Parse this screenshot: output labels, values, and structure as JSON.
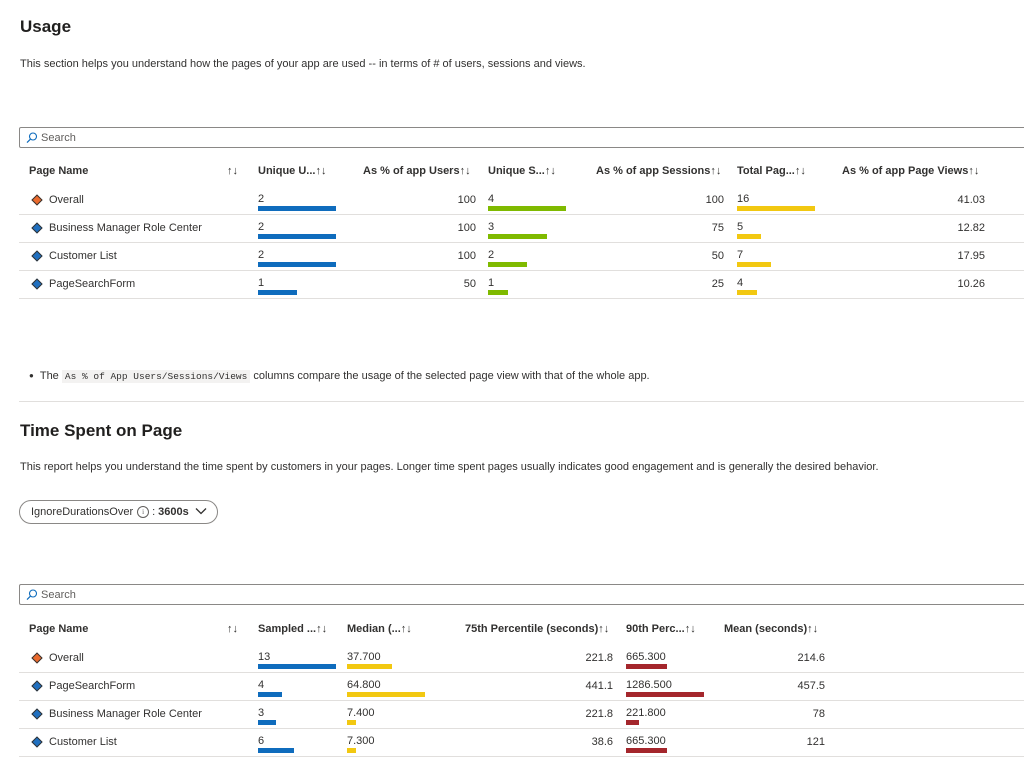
{
  "usage": {
    "title": "Usage",
    "description": "This section helps you understand how the pages of your app are used -- in terms of # of users, sessions and views.",
    "search_placeholder": "Search",
    "columns": [
      "Page Name",
      "Unique U...",
      "As % of app Users",
      "Unique S...",
      "As % of app Sessions",
      "Total Pag...",
      "As % of app Page Views"
    ],
    "rows": [
      {
        "name": "Overall",
        "icon": "orange-diamond-icon",
        "users": "2",
        "users_pct": "100",
        "sessions": "4",
        "sessions_pct": "100",
        "views": "16",
        "views_pct": "41.03",
        "users_bar": 1.0,
        "sessions_bar": 1.0,
        "views_bar": 1.0
      },
      {
        "name": "Business Manager Role Center",
        "icon": "blue-diamond-icon",
        "users": "2",
        "users_pct": "100",
        "sessions": "3",
        "sessions_pct": "75",
        "views": "5",
        "views_pct": "12.82",
        "users_bar": 1.0,
        "sessions_bar": 0.75,
        "views_bar": 0.3125
      },
      {
        "name": "Customer List",
        "icon": "blue-diamond-icon",
        "users": "2",
        "users_pct": "100",
        "sessions": "2",
        "sessions_pct": "50",
        "views": "7",
        "views_pct": "17.95",
        "users_bar": 1.0,
        "sessions_bar": 0.5,
        "views_bar": 0.4375
      },
      {
        "name": "PageSearchForm",
        "icon": "blue-diamond-icon",
        "users": "1",
        "users_pct": "50",
        "sessions": "1",
        "sessions_pct": "25",
        "views": "4",
        "views_pct": "10.26",
        "users_bar": 0.5,
        "sessions_bar": 0.25,
        "views_bar": 0.25
      }
    ],
    "note_prefix": "The",
    "note_code": "As % of App Users/Sessions/Views",
    "note_suffix": "columns compare the usage of the selected page view with that of the whole app."
  },
  "time_spent": {
    "title": "Time Spent on Page",
    "description": "This report helps you understand the time spent by customers in your pages. Longer time spent pages usually indicates good engagement and is generally the desired behavior.",
    "filter_label": "IgnoreDurationsOver",
    "filter_separator": ":",
    "filter_value": "3600s",
    "search_placeholder": "Search",
    "columns": [
      "Page Name",
      "Sampled ...",
      "Median (...",
      "75th Percentile (seconds)",
      "90th Perc...",
      "Mean (seconds)"
    ],
    "rows": [
      {
        "name": "Overall",
        "icon": "orange-diamond-icon",
        "sampled": "13",
        "median": "37.700",
        "p75": "221.8",
        "p90": "665.300",
        "mean": "214.6",
        "sampled_bar": 1.0,
        "median_bar": 0.58,
        "p90_bar": 0.52
      },
      {
        "name": "PageSearchForm",
        "icon": "blue-diamond-icon",
        "sampled": "4",
        "median": "64.800",
        "p75": "441.1",
        "p90": "1286.500",
        "mean": "457.5",
        "sampled_bar": 0.31,
        "median_bar": 1.0,
        "p90_bar": 1.0
      },
      {
        "name": "Business Manager Role Center",
        "icon": "blue-diamond-icon",
        "sampled": "3",
        "median": "7.400",
        "p75": "221.8",
        "p90": "221.800",
        "mean": "78",
        "sampled_bar": 0.23,
        "median_bar": 0.11,
        "p90_bar": 0.17
      },
      {
        "name": "Customer List",
        "icon": "blue-diamond-icon",
        "sampled": "6",
        "median": "7.300",
        "p75": "38.6",
        "p90": "665.300",
        "mean": "121",
        "sampled_bar": 0.46,
        "median_bar": 0.11,
        "p90_bar": 0.52
      }
    ]
  },
  "colors": {
    "users_bar": "#0f6cbd",
    "sessions_bar": "#7fba00",
    "views_bar": "#f2c811",
    "sampled_bar": "#0f6cbd",
    "median_bar": "#f2c811",
    "p90_bar": "#a4262c",
    "orange_diamond": "#ea6a2d",
    "blue_diamond": "#1f6fbf"
  },
  "sort_icon": "↑↓"
}
